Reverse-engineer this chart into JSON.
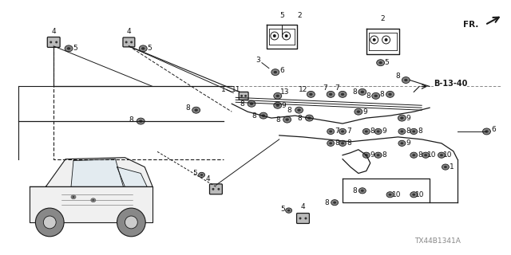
{
  "bg_color": "#ffffff",
  "fig_width": 6.4,
  "fig_height": 3.2,
  "dpi": 100,
  "watermark": "TX44B1341A",
  "ref_label": "B-13-40",
  "fr_text": "FR."
}
